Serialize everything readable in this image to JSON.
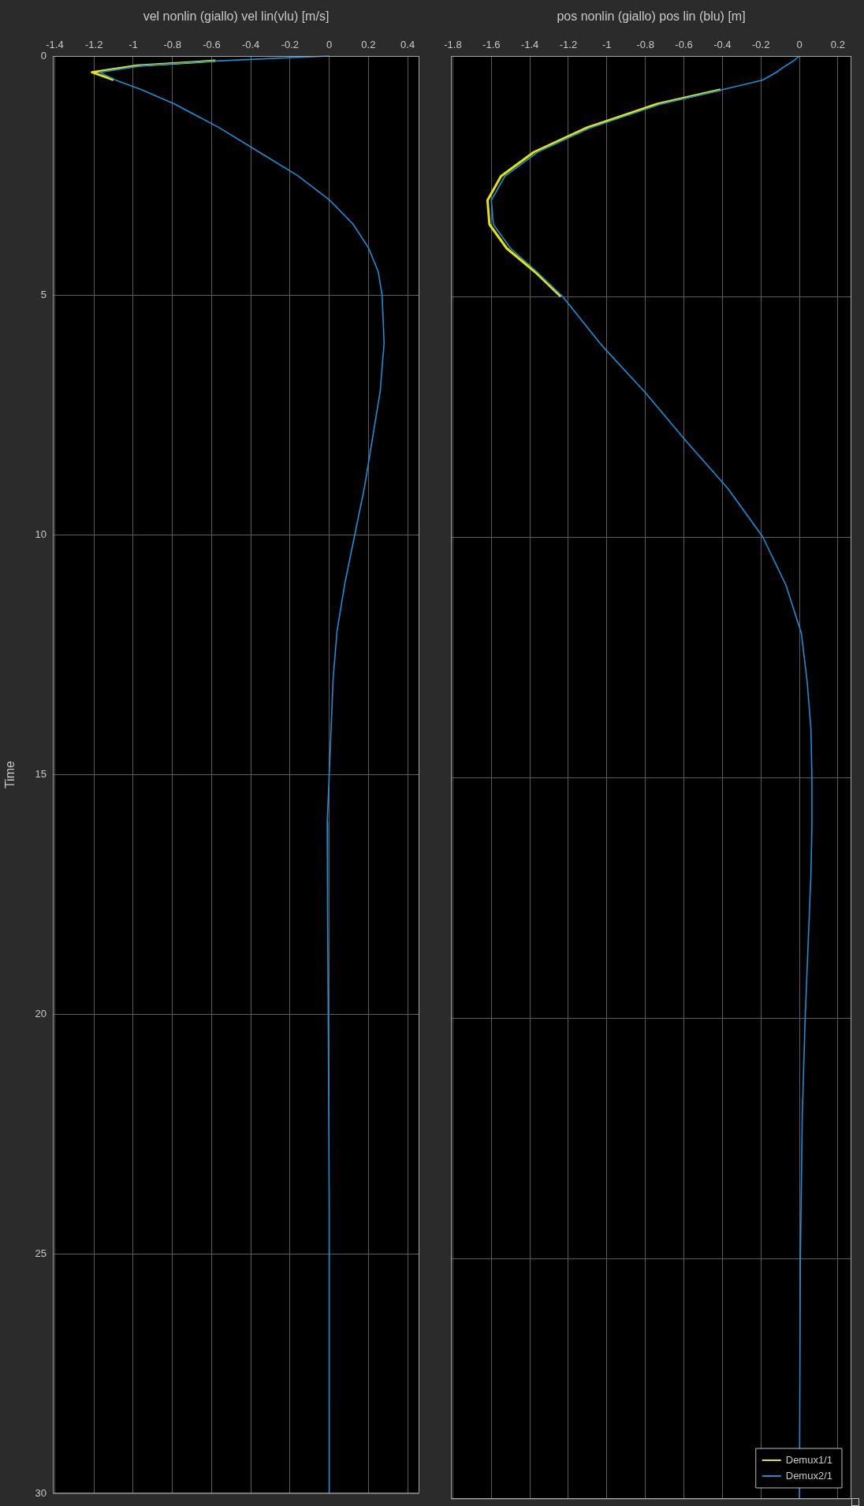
{
  "chart_data": [
    {
      "type": "line",
      "xlabel": "vel nonlin (giallo) vel lin(vlu) [m/s]",
      "ylabel": "Time",
      "series": [
        {
          "color": "#e6e600",
          "x": [
            -0.58,
            -0.98,
            -1.21,
            -1.1
          ],
          "values": [
            0.1,
            0.2,
            0.34,
            0.5
          ]
        },
        {
          "color": "#1a8fd6",
          "x": [
            0,
            -0.56,
            -0.95,
            -1.17,
            -1.09,
            -0.96,
            -0.79,
            -0.56,
            -0.36,
            -0.16,
            0,
            0.12,
            0.2,
            0.25,
            0.27,
            0.28,
            0.26,
            0.22,
            0.18,
            0.13,
            0.08,
            0.04,
            0.02,
            0.01,
            0,
            -0.01,
            -0.008,
            -0.005,
            0,
            0
          ],
          "values": [
            0,
            0.1,
            0.2,
            0.34,
            0.5,
            0.7,
            1,
            1.5,
            2,
            2.5,
            3,
            3.5,
            4,
            4.5,
            5,
            6,
            7,
            8,
            9,
            10,
            11,
            12,
            13,
            14,
            15,
            16,
            18,
            20,
            24,
            30
          ]
        }
      ],
      "xlim": [
        -1.41,
        0.46
      ],
      "xticks": [
        -1.4,
        -1.2,
        -1,
        -0.8,
        -0.6,
        -0.4,
        -0.2,
        0,
        0.2,
        0.4
      ],
      "ylim": [
        30,
        0
      ],
      "yticks": [
        0,
        5,
        10,
        15,
        20,
        25,
        30
      ],
      "grid": true
    },
    {
      "type": "line",
      "xlabel": "pos nonlin (giallo) pos lin (blu) [m]",
      "series": [
        {
          "name": "Demux1/1",
          "color": "#e6e600",
          "x": [
            -0.41,
            -0.74,
            -1.11,
            -1.38,
            -1.55,
            -1.62,
            -1.61,
            -1.52,
            -1.37,
            -1.24
          ],
          "values": [
            0.7,
            1,
            1.5,
            2,
            2.5,
            3,
            3.5,
            4,
            4.5,
            5
          ]
        },
        {
          "name": "Demux2/1",
          "color": "#1a8fd6",
          "x": [
            0,
            -0.03,
            -0.07,
            -0.12,
            -0.19,
            -0.4,
            -0.72,
            -1.09,
            -1.36,
            -1.53,
            -1.6,
            -1.59,
            -1.5,
            -1.36,
            -1.23,
            -1.03,
            -0.8,
            -0.59,
            -0.37,
            -0.19,
            -0.07,
            0.01,
            0.04,
            0.06,
            0.065,
            0.065,
            0.06,
            0.05,
            0.03,
            0.015,
            0.005,
            0
          ],
          "values": [
            0,
            0.1,
            0.2,
            0.34,
            0.5,
            0.7,
            1,
            1.5,
            2,
            2.5,
            3,
            3.5,
            4,
            4.5,
            5,
            6,
            7,
            8,
            9,
            10,
            11,
            12,
            13,
            14,
            15,
            16,
            17,
            18,
            20,
            22,
            25,
            30
          ]
        }
      ],
      "xlim": [
        -1.81,
        0.27
      ],
      "xticks": [
        -1.8,
        -1.6,
        -1.4,
        -1.2,
        -1,
        -0.8,
        -0.6,
        -0.4,
        -0.2,
        0,
        0.2
      ],
      "ylim": [
        30,
        0
      ],
      "yticks": [
        0,
        5,
        10,
        15,
        20,
        25,
        30
      ],
      "grid": true,
      "legend": "bottom right",
      "tick_labels": "x"
    }
  ]
}
